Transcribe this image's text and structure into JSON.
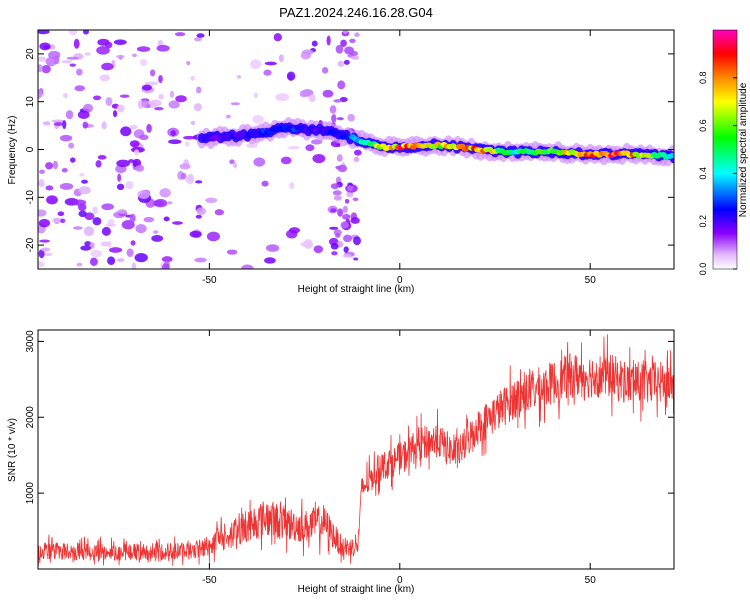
{
  "title": "PAZ1.2024.246.16.28.G04",
  "chart_data": [
    {
      "type": "heatmap",
      "xlabel": "Height of straight line (km)",
      "ylabel": "Frequency (Hz)",
      "xlim": [
        -95,
        72
      ],
      "ylim": [
        -25,
        25
      ],
      "xticks": [
        -50,
        0,
        50
      ],
      "yticks": [
        -20,
        -10,
        0,
        10,
        20
      ],
      "colorbar": {
        "label": "Normalized spectral amplitude",
        "range": [
          0,
          1
        ],
        "ticks": [
          0.0,
          0.2,
          0.4,
          0.6,
          0.8
        ],
        "tick_labels": [
          "0.0",
          "0.2",
          "0.4",
          "0.6",
          "0.8"
        ],
        "colormap": "rainbow (white-violet-blue-cyan-green-yellow-red-magenta)"
      },
      "ridge": [
        {
          "x": -50,
          "y": 2.5,
          "amp": 0.2
        },
        {
          "x": -40,
          "y": 3.0,
          "amp": 0.25
        },
        {
          "x": -30,
          "y": 4.5,
          "amp": 0.3
        },
        {
          "x": -20,
          "y": 4.0,
          "amp": 0.2
        },
        {
          "x": -13,
          "y": 2.5,
          "amp": 0.3
        },
        {
          "x": -5,
          "y": 0.5,
          "amp": 0.7
        },
        {
          "x": 0,
          "y": 0.5,
          "amp": 0.85
        },
        {
          "x": 10,
          "y": 1.0,
          "amp": 0.7
        },
        {
          "x": 20,
          "y": 0.0,
          "amp": 0.85
        },
        {
          "x": 30,
          "y": -0.5,
          "amp": 0.5
        },
        {
          "x": 40,
          "y": -0.5,
          "amp": 0.6
        },
        {
          "x": 50,
          "y": -1.0,
          "amp": 0.95
        },
        {
          "x": 60,
          "y": -1.0,
          "amp": 0.9
        },
        {
          "x": 72,
          "y": -1.5,
          "amp": 0.4
        }
      ]
    },
    {
      "type": "line",
      "xlabel": "Height of straight line (km)",
      "ylabel": "SNR (10 * v/v)",
      "xlim": [
        -95,
        72
      ],
      "ylim": [
        0,
        3150
      ],
      "xticks": [
        -50,
        0,
        50
      ],
      "yticks": [
        1000,
        2000,
        3000
      ],
      "series": [
        {
          "color": "#ee3333",
          "x": [
            -95,
            -80,
            -65,
            -55,
            -50,
            -45,
            -40,
            -35,
            -30,
            -25,
            -20,
            -15,
            -11,
            -10,
            -5,
            0,
            5,
            10,
            15,
            20,
            25,
            30,
            35,
            40,
            45,
            50,
            55,
            60,
            65,
            72
          ],
          "values": [
            250,
            220,
            230,
            240,
            320,
            430,
            580,
            680,
            600,
            560,
            620,
            280,
            300,
            1050,
            1350,
            1450,
            1650,
            1700,
            1500,
            1850,
            2050,
            2250,
            2350,
            2450,
            2550,
            2550,
            2550,
            2450,
            2450,
            2450
          ]
        }
      ]
    }
  ]
}
